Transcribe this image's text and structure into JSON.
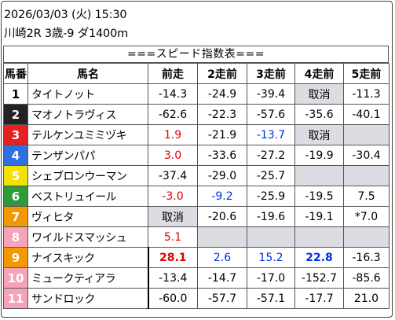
{
  "header": {
    "line1": "2026/03/03 (火) 15:30",
    "line2": "川崎2R 3歳-9 ダ1400m"
  },
  "banner": "===スピード指数表===",
  "columns": [
    "馬番",
    "馬名",
    "前走",
    "2走前",
    "3走前",
    "4走前",
    "5走前"
  ],
  "colors": {
    "frame1": "#ffffff",
    "frame2": "#222222",
    "frame3": "#e62020",
    "frame4": "#2f6fe0",
    "frame5": "#f3e100",
    "frame6": "#2f9a3a",
    "frame7": "#f39800",
    "frame8": "#f5a3b8",
    "gray": "#dcdde2",
    "red": "#e00000",
    "blue": "#0030e0"
  },
  "rows": [
    {
      "num": "1",
      "name": "タイトノット",
      "v": [
        "-14.3",
        "-24.9",
        "-39.4",
        "取消",
        "-11.3"
      ]
    },
    {
      "num": "2",
      "name": "マオノトラヴィス",
      "v": [
        "-62.6",
        "-22.3",
        "-57.6",
        "-35.6",
        "-40.1"
      ]
    },
    {
      "num": "3",
      "name": "テルケンユミミヅキ",
      "v": [
        "1.9",
        "-21.9",
        "-13.7",
        "取消",
        ""
      ]
    },
    {
      "num": "4",
      "name": "テンザンパパ",
      "v": [
        "3.0",
        "-33.6",
        "-27.2",
        "-19.9",
        "-30.4"
      ]
    },
    {
      "num": "5",
      "name": "シェブロンウーマン",
      "v": [
        "-37.4",
        "-29.0",
        "-25.7",
        "",
        ""
      ]
    },
    {
      "num": "6",
      "name": "ベストリュイール",
      "v": [
        "-3.0",
        "-9.2",
        "-25.9",
        "-19.5",
        "7.5"
      ]
    },
    {
      "num": "7",
      "name": "ヴィヒタ",
      "v": [
        "取消",
        "-20.6",
        "-19.6",
        "-19.1",
        "*7.0"
      ]
    },
    {
      "num": "8",
      "name": "ワイルドスマッシュ",
      "v": [
        "5.1",
        "",
        "",
        "",
        ""
      ]
    },
    {
      "num": "9",
      "name": "ナイスキック",
      "v": [
        "28.1",
        "2.6",
        "15.2",
        "22.8",
        "-16.3"
      ]
    },
    {
      "num": "10",
      "name": "ミュークティアラ",
      "v": [
        "-13.4",
        "-14.7",
        "-17.0",
        "-152.7",
        "-85.6"
      ]
    },
    {
      "num": "11",
      "name": "サンドロック",
      "v": [
        "-60.0",
        "-57.7",
        "-57.1",
        "-17.7",
        "21.0"
      ]
    }
  ]
}
